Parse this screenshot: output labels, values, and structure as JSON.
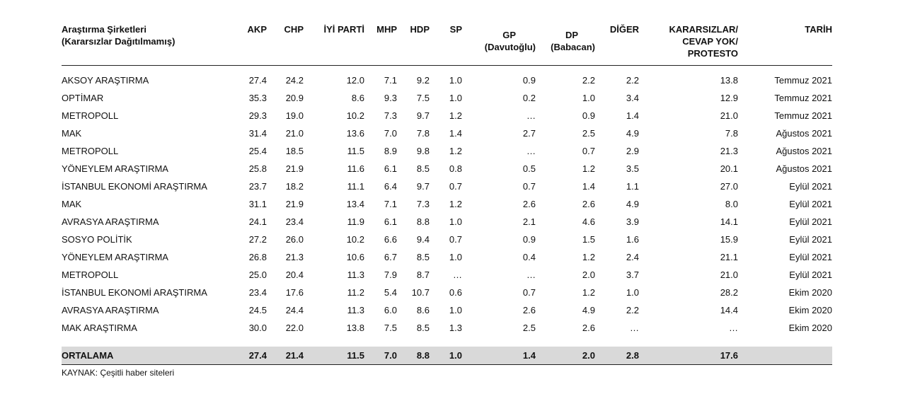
{
  "headers": {
    "company_line1": "Araştırma Şirketleri",
    "company_line2": "(Kararsızlar Dağıtılmamış)",
    "akp": "AKP",
    "chp": "CHP",
    "iyi": "İYİ PARTİ",
    "mhp": "MHP",
    "hdp": "HDP",
    "sp": "SP",
    "gp_line1": "GP",
    "gp_line2": "(Davutoğlu)",
    "dp_line1": "DP",
    "dp_line2": "(Babacan)",
    "diger": "DİĞER",
    "karar_line1": "KARARSIZLAR/",
    "karar_line2": "CEVAP YOK/",
    "karar_line3": "PROTESTO",
    "tarih": "TARİH"
  },
  "rows": [
    [
      "AKSOY ARAŞTIRMA",
      "27.4",
      "24.2",
      "12.0",
      "7.1",
      "9.2",
      "1.0",
      "0.9",
      "2.2",
      "2.2",
      "13.8",
      "Temmuz 2021"
    ],
    [
      "OPTİMAR",
      "35.3",
      "20.9",
      "8.6",
      "9.3",
      "7.5",
      "1.0",
      "0.2",
      "1.0",
      "3.4",
      "12.9",
      "Temmuz 2021"
    ],
    [
      "METROPOLL",
      "29.3",
      "19.0",
      "10.2",
      "7.3",
      "9.7",
      "1.2",
      "…",
      "0.9",
      "1.4",
      "21.0",
      "Temmuz 2021"
    ],
    [
      "MAK",
      "31.4",
      "21.0",
      "13.6",
      "7.0",
      "7.8",
      "1.4",
      "2.7",
      "2.5",
      "4.9",
      "7.8",
      "Ağustos 2021"
    ],
    [
      "METROPOLL",
      "25.4",
      "18.5",
      "11.5",
      "8.9",
      "9.8",
      "1.2",
      "…",
      "0.7",
      "2.9",
      "21.3",
      "Ağustos 2021"
    ],
    [
      "YÖNEYLEM ARAŞTIRMA",
      "25.8",
      "21.9",
      "11.6",
      "6.1",
      "8.5",
      "0.8",
      "0.5",
      "1.2",
      "3.5",
      "20.1",
      "Ağustos 2021"
    ],
    [
      "İSTANBUL EKONOMİ ARAŞTIRMA",
      "23.7",
      "18.2",
      "11.1",
      "6.4",
      "9.7",
      "0.7",
      "0.7",
      "1.4",
      "1.1",
      "27.0",
      "Eylül 2021"
    ],
    [
      "MAK",
      "31.1",
      "21.9",
      "13.4",
      "7.1",
      "7.3",
      "1.2",
      "2.6",
      "2.6",
      "4.9",
      "8.0",
      "Eylül 2021"
    ],
    [
      "AVRASYA ARAŞTIRMA",
      "24.1",
      "23.4",
      "11.9",
      "6.1",
      "8.8",
      "1.0",
      "2.1",
      "4.6",
      "3.9",
      "14.1",
      "Eylül 2021"
    ],
    [
      "SOSYO POLİTİK",
      "27.2",
      "26.0",
      "10.2",
      "6.6",
      "9.4",
      "0.7",
      "0.9",
      "1.5",
      "1.6",
      "15.9",
      "Eylül 2021"
    ],
    [
      "YÖNEYLEM ARAŞTIRMA",
      "26.8",
      "21.3",
      "10.6",
      "6.7",
      "8.5",
      "1.0",
      "0.4",
      "1.2",
      "2.4",
      "21.1",
      "Eylül 2021"
    ],
    [
      "METROPOLL",
      "25.0",
      "20.4",
      "11.3",
      "7.9",
      "8.7",
      "…",
      "…",
      "2.0",
      "3.7",
      "21.0",
      "Eylül 2021"
    ],
    [
      "İSTANBUL EKONOMİ ARAŞTIRMA",
      "23.4",
      "17.6",
      "11.2",
      "5.4",
      "10.7",
      "0.6",
      "0.7",
      "1.2",
      "1.0",
      "28.2",
      "Ekim 2020"
    ],
    [
      "AVRASYA ARAŞTIRMA",
      "24.5",
      "24.4",
      "11.3",
      "6.0",
      "8.6",
      "1.0",
      "2.6",
      "4.9",
      "2.2",
      "14.4",
      "Ekim 2020"
    ],
    [
      "MAK ARAŞTIRMA",
      "30.0",
      "22.0",
      "13.8",
      "7.5",
      "8.5",
      "1.3",
      "2.5",
      "2.6",
      "…",
      "…",
      "Ekim 2020"
    ]
  ],
  "average": [
    "ORTALAMA",
    "27.4",
    "21.4",
    "11.5",
    "7.0",
    "8.8",
    "1.0",
    "1.4",
    "2.0",
    "2.8",
    "17.6",
    ""
  ],
  "source": "KAYNAK: Çeşitli haber siteleri"
}
